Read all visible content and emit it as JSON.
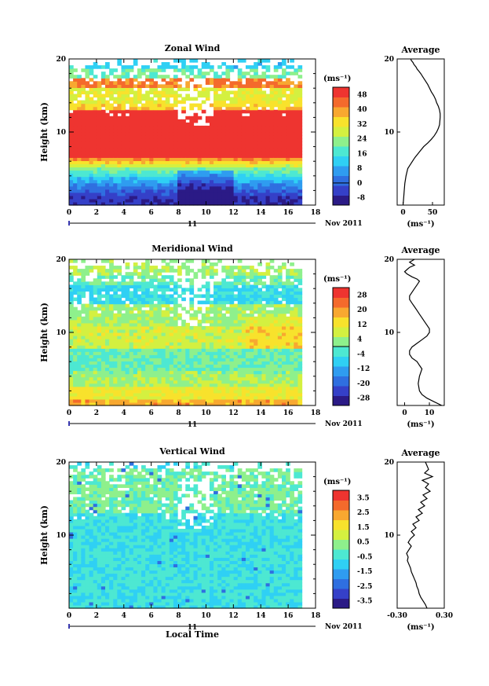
{
  "chart_data": [
    {
      "type": "heatmap",
      "title": "Zonal Wind",
      "ylabel": "Height (km)",
      "x_ticks": [
        "0",
        "2",
        "4",
        "6",
        "8",
        "10",
        "12",
        "14",
        "16",
        "18"
      ],
      "y_ticks": [
        "10",
        "20"
      ],
      "xlim": [
        0,
        18
      ],
      "ylim": [
        0,
        20
      ],
      "data_xlim": [
        0,
        17
      ],
      "date_label": "11",
      "date_suffix": "Nov 2011",
      "colorbar": {
        "unit": "(ms⁻¹)",
        "labels": [
          "48",
          "40",
          "32",
          "24",
          "16",
          "8",
          "0",
          "-8"
        ],
        "range": [
          -12,
          52
        ],
        "zero_line": 0
      },
      "profile": {
        "title": "Average",
        "xlabel": "(ms⁻¹)",
        "x_ticks": [
          "0",
          "50"
        ],
        "y_ticks": [
          "10",
          "20"
        ],
        "xlim": [
          -10,
          70
        ],
        "ylim": [
          0,
          20
        ],
        "x": [
          0,
          1,
          2,
          3,
          5,
          8,
          12,
          16,
          20,
          25,
          30,
          35,
          42,
          48,
          53,
          57,
          60,
          62,
          63,
          63,
          62,
          60,
          57,
          55,
          52,
          48,
          45,
          42,
          38,
          34,
          30,
          27,
          24,
          22,
          20,
          18,
          17,
          16,
          15,
          14,
          13
        ],
        "y": [
          0,
          1,
          2,
          3,
          4,
          5,
          5.5,
          6,
          6.5,
          7,
          7.5,
          8,
          8.5,
          9,
          9.5,
          10,
          10.5,
          11,
          12,
          12.5,
          13,
          13.5,
          14,
          14.5,
          15,
          15.5,
          16,
          16.5,
          17,
          17.5,
          18,
          18.3,
          18.6,
          18.9,
          19.1,
          19.3,
          19.5,
          19.6,
          19.7,
          19.8,
          20
        ]
      }
    },
    {
      "type": "heatmap",
      "title": "Meridional Wind",
      "ylabel": "Height (km)",
      "x_ticks": [
        "0",
        "2",
        "4",
        "6",
        "8",
        "10",
        "12",
        "14",
        "16",
        "18"
      ],
      "y_ticks": [
        "10",
        "20"
      ],
      "xlim": [
        0,
        18
      ],
      "ylim": [
        0,
        20
      ],
      "data_xlim": [
        0,
        17
      ],
      "date_label": "11",
      "date_suffix": "Nov 2011",
      "colorbar": {
        "unit": "(ms⁻¹)",
        "labels": [
          "28",
          "20",
          "12",
          "4",
          "-4",
          "-12",
          "-20",
          "-28"
        ],
        "range": [
          -32,
          32
        ],
        "zero_line": 0
      },
      "profile": {
        "title": "Average",
        "xlabel": "(ms⁻¹)",
        "x_ticks": [
          "0",
          "10"
        ],
        "y_ticks": [
          "10",
          "20"
        ],
        "xlim": [
          -3,
          16
        ],
        "ylim": [
          0,
          20
        ],
        "x": [
          15,
          12,
          9,
          7,
          6,
          5.5,
          6,
          7,
          6,
          5,
          3,
          2,
          2,
          3,
          5,
          7,
          9,
          10,
          10,
          9,
          8,
          7,
          6,
          5,
          4,
          3,
          2,
          2,
          3,
          4,
          5,
          6,
          5,
          3,
          1,
          0,
          1,
          2,
          4,
          3,
          2,
          3,
          4
        ],
        "y": [
          0,
          0.5,
          1,
          1.5,
          2,
          3,
          4,
          5,
          5.5,
          6,
          6.5,
          7,
          7.5,
          8,
          8.5,
          9,
          9.5,
          10,
          10.5,
          11,
          11.5,
          12,
          12.5,
          13,
          13.5,
          14,
          14.5,
          15,
          15.5,
          16,
          16.5,
          17,
          17.3,
          17.6,
          18,
          18.3,
          18.6,
          18.9,
          19.2,
          19.4,
          19.6,
          19.8,
          20
        ]
      }
    },
    {
      "type": "heatmap",
      "title": "Vertical Wind",
      "ylabel": "Height (km)",
      "xlabel": "Local Time",
      "x_ticks": [
        "0",
        "2",
        "4",
        "6",
        "8",
        "10",
        "12",
        "14",
        "16",
        "18"
      ],
      "y_ticks": [
        "10",
        "20"
      ],
      "xlim": [
        0,
        18
      ],
      "ylim": [
        0,
        20
      ],
      "data_xlim": [
        0,
        17
      ],
      "date_label": "11",
      "date_suffix": "Nov 2011",
      "colorbar": {
        "unit": "(ms⁻¹)",
        "labels": [
          "3.5",
          "2.5",
          "1.5",
          "0.5",
          "-0.5",
          "-1.5",
          "-2.5",
          "-3.5"
        ],
        "range": [
          -4,
          4
        ]
      },
      "profile": {
        "title": "Average",
        "xlabel": "(ms⁻¹)",
        "x_ticks": [
          "-0.30",
          "0.30"
        ],
        "y_ticks": [
          "10",
          "20"
        ],
        "xlim": [
          -0.3,
          0.3
        ],
        "ylim": [
          0,
          20
        ],
        "x": [
          0.08,
          0.06,
          0.03,
          0.0,
          -0.02,
          -0.03,
          -0.05,
          -0.06,
          -0.08,
          -0.1,
          -0.12,
          -0.13,
          -0.15,
          -0.17,
          -0.16,
          -0.18,
          -0.15,
          -0.12,
          -0.16,
          -0.13,
          -0.08,
          -0.12,
          -0.06,
          -0.1,
          -0.02,
          -0.06,
          0.02,
          -0.03,
          0.05,
          0.0,
          0.08,
          0.03,
          0.12,
          0.06,
          0.1,
          0.02,
          0.15,
          0.05,
          0.1,
          0.08,
          0.06
        ],
        "y": [
          0,
          0.5,
          1,
          1.5,
          2,
          2.5,
          3,
          3.5,
          4,
          4.5,
          5,
          5.5,
          6,
          6.5,
          7,
          7.5,
          8,
          8.5,
          9,
          9.5,
          10,
          10.5,
          11,
          11.5,
          12,
          12.5,
          13,
          13.5,
          14,
          14.5,
          15,
          15.5,
          16,
          16.5,
          17,
          17.5,
          18,
          18.5,
          19,
          19.5,
          20
        ]
      }
    }
  ]
}
